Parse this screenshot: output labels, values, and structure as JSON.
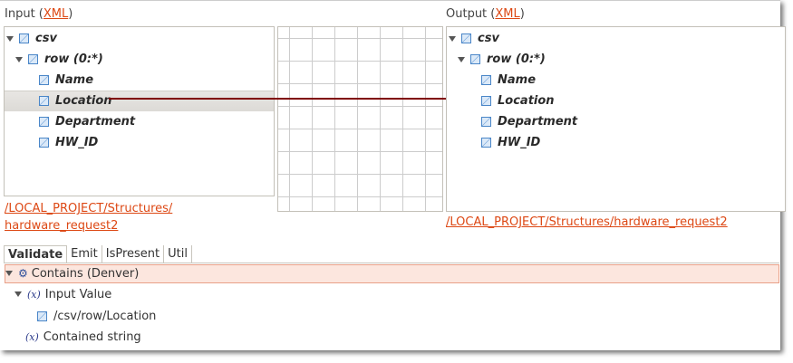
{
  "input": {
    "label": "Input (",
    "format": "XML",
    "label_end": ")",
    "path_line1": "/LOCAL_PROJECT/Structures/",
    "path_line2": "hardware_request2",
    "tree": [
      {
        "label": "csv",
        "expand": true
      },
      {
        "label": "row (0:*)",
        "expand": true
      },
      {
        "label": "Name"
      },
      {
        "label": "Location",
        "selected": true
      },
      {
        "label": "Department"
      },
      {
        "label": "HW_ID"
      }
    ]
  },
  "output": {
    "label": "Output (",
    "format": "XML",
    "label_end": ")",
    "path": "/LOCAL_PROJECT/Structures/hardware_request2",
    "tree": [
      {
        "label": "csv"
      },
      {
        "label": "row (0:*)"
      },
      {
        "label": "Name"
      },
      {
        "label": "Location"
      },
      {
        "label": "Department"
      },
      {
        "label": "HW_ID"
      }
    ]
  },
  "mapping": {
    "from": "Location",
    "to": "Location",
    "color": "#800000"
  },
  "tabs": [
    "Validate",
    "Emit",
    "IsPresent",
    "Util"
  ],
  "validate": {
    "rule": "Contains (Denver)",
    "input_value": "Input Value",
    "input_path": "/csv/row/Location",
    "contained": "Contained string",
    "highlight": "#fce6de"
  }
}
